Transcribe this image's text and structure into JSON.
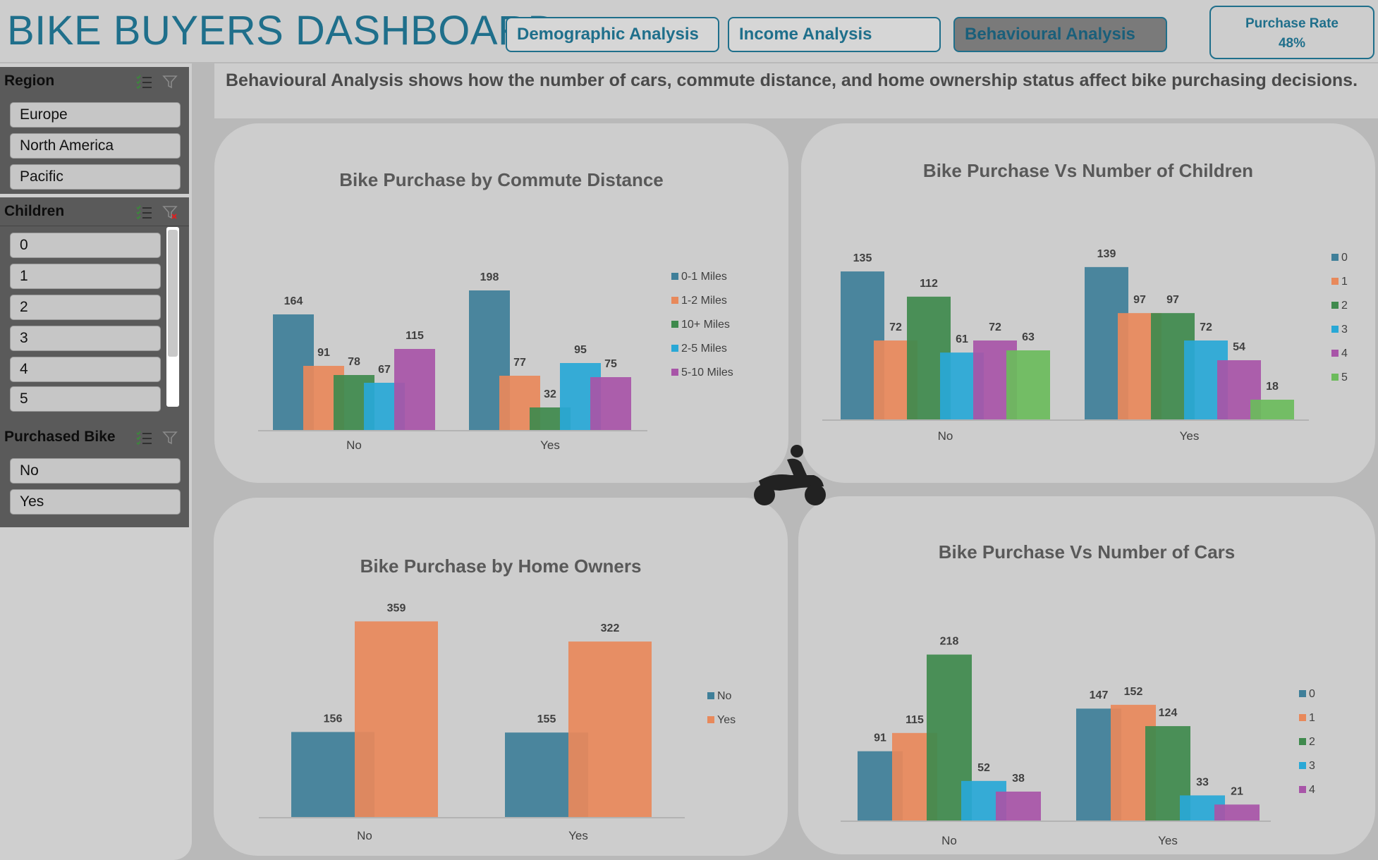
{
  "header": {
    "title": "BIKE BUYERS DASHBOARD",
    "nav": [
      "Demographic Analysis",
      "Income  Analysis",
      "Behavioural  Analysis"
    ],
    "purchase_rate_label": "Purchase Rate",
    "purchase_rate_value": "48%"
  },
  "description": "Behavioural Analysis shows how  the number of cars, commute distance, and home ownership status affect bike purchasing decisions.",
  "slicers": {
    "region": {
      "title": "Region",
      "items": [
        "Europe",
        "North America",
        "Pacific"
      ]
    },
    "children": {
      "title": "Children",
      "items": [
        "0",
        "1",
        "2",
        "3",
        "4",
        "5"
      ]
    },
    "purchased": {
      "title": "Purchased Bike",
      "items": [
        "No",
        "Yes"
      ]
    }
  },
  "colors": {
    "teal": "#3f7f99",
    "orange": "#e8895b",
    "green": "#3f8a4d",
    "cyan": "#29a8d6",
    "purple": "#a855a8",
    "lightgreen": "#6cbb5c"
  },
  "chart_data": [
    {
      "type": "bar",
      "title": "Bike Purchase by Commute Distance",
      "categories": [
        "No",
        "Yes"
      ],
      "series": [
        {
          "name": "0-1 Miles",
          "values": [
            164,
            198
          ]
        },
        {
          "name": "1-2 Miles",
          "values": [
            91,
            77
          ]
        },
        {
          "name": "10+ Miles",
          "values": [
            78,
            32
          ]
        },
        {
          "name": "2-5 Miles",
          "values": [
            67,
            95
          ]
        },
        {
          "name": "5-10 Miles",
          "values": [
            115,
            75
          ]
        }
      ],
      "legend": "right"
    },
    {
      "type": "bar",
      "title": "Bike Purchase Vs Number  of Children",
      "categories": [
        "No",
        "Yes"
      ],
      "series": [
        {
          "name": "0",
          "values": [
            135,
            139
          ]
        },
        {
          "name": "1",
          "values": [
            72,
            97
          ]
        },
        {
          "name": "2",
          "values": [
            112,
            97
          ]
        },
        {
          "name": "3",
          "values": [
            61,
            72
          ]
        },
        {
          "name": "4",
          "values": [
            72,
            54
          ]
        },
        {
          "name": "5",
          "values": [
            63,
            18
          ]
        }
      ],
      "legend": "right"
    },
    {
      "type": "bar",
      "title": "Bike Purchase by Home Owners",
      "categories": [
        "No",
        "Yes"
      ],
      "series": [
        {
          "name": "No",
          "values": [
            156,
            155
          ]
        },
        {
          "name": "Yes",
          "values": [
            359,
            322
          ]
        }
      ],
      "legend": "right"
    },
    {
      "type": "bar",
      "title": "Bike Purchase Vs Number of Cars",
      "categories": [
        "No",
        "Yes"
      ],
      "series": [
        {
          "name": "0",
          "values": [
            91,
            147
          ]
        },
        {
          "name": "1",
          "values": [
            115,
            152
          ]
        },
        {
          "name": "2",
          "values": [
            218,
            124
          ]
        },
        {
          "name": "3",
          "values": [
            52,
            33
          ]
        },
        {
          "name": "4",
          "values": [
            38,
            21
          ]
        }
      ],
      "legend": "right"
    }
  ]
}
